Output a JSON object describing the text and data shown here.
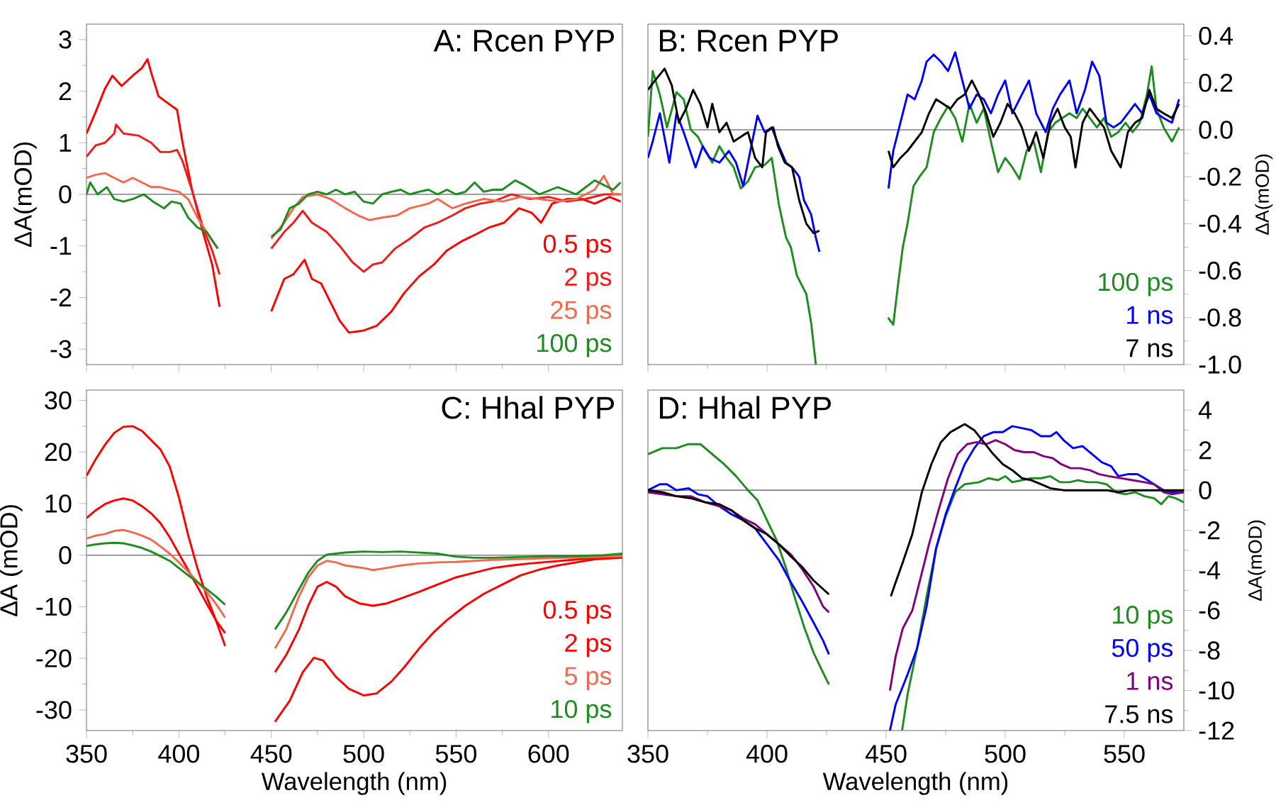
{
  "chart_data": [
    {
      "type": "line",
      "title": "A: Rcen PYP",
      "ylabel": "ΔA(mOD)",
      "xlim": [
        350,
        640
      ],
      "xticks": [
        350,
        400,
        450,
        500,
        550,
        600
      ],
      "ylim": [
        -3.3,
        3.3
      ],
      "yticks": [
        -3,
        -2,
        -1,
        0,
        1,
        2,
        3
      ],
      "tick_labels": "y",
      "legend": "bottom right",
      "ref_lines": [
        {
          "axis": "y",
          "value": 0,
          "color": "#808080"
        }
      ],
      "series": [
        {
          "name": "0.5 ps",
          "color": "#ff0000",
          "x": [
            350,
            355,
            360,
            364,
            369,
            375,
            380,
            383,
            385,
            389,
            392,
            399,
            402,
            407,
            413,
            418,
            422,
            437,
            450,
            457,
            462,
            468,
            472,
            477,
            482,
            487,
            492,
            500,
            507,
            515,
            522,
            530,
            538,
            545,
            553,
            561,
            568,
            576,
            584,
            591,
            596,
            602,
            610,
            618,
            625,
            633,
            639
          ],
          "values": [
            1.18,
            1.6,
            2.05,
            2.3,
            2.1,
            2.3,
            2.45,
            2.62,
            2.36,
            1.9,
            1.82,
            1.64,
            1.0,
            0.1,
            -0.73,
            -1.36,
            -2.18,
            null,
            -2.27,
            -1.64,
            -1.55,
            -1.27,
            -1.64,
            -1.73,
            -2.09,
            -2.45,
            -2.68,
            -2.64,
            -2.55,
            -2.27,
            -1.91,
            -1.59,
            -1.36,
            -1.09,
            -0.91,
            -0.77,
            -0.64,
            -0.55,
            -0.27,
            -0.36,
            -0.55,
            -0.18,
            -0.09,
            -0.09,
            -0.18,
            -0.05,
            -0.14
          ]
        },
        {
          "name": "2 ps",
          "color": "#f21a1a",
          "x": [
            350,
            355,
            360,
            365,
            366,
            370,
            378,
            385,
            390,
            395,
            399,
            402,
            407,
            413,
            418,
            422,
            437,
            450,
            457,
            462,
            467,
            472,
            480,
            487,
            494,
            500,
            505,
            510,
            517,
            525,
            533,
            540,
            548,
            555,
            563,
            570,
            580,
            590,
            600,
            610,
            620,
            630,
            639
          ],
          "values": [
            0.73,
            0.95,
            1.0,
            1.18,
            1.35,
            1.18,
            1.14,
            1.0,
            0.82,
            0.82,
            0.86,
            0.64,
            0.09,
            -0.64,
            -1.09,
            -1.55,
            null,
            -1.05,
            -0.73,
            -0.55,
            -0.32,
            -0.55,
            -0.73,
            -1.0,
            -1.32,
            -1.5,
            -1.36,
            -1.32,
            -1.05,
            -0.86,
            -0.64,
            -0.55,
            -0.41,
            -0.27,
            -0.18,
            -0.14,
            0,
            -0.09,
            -0.05,
            -0.14,
            -0.09,
            0,
            0
          ]
        },
        {
          "name": "25 ps",
          "color": "#f06a50",
          "x": [
            350,
            355,
            360,
            365,
            370,
            375,
            380,
            385,
            390,
            395,
            400,
            405,
            410,
            415,
            421,
            437,
            450,
            457,
            462,
            467,
            475,
            482,
            490,
            497,
            503,
            510,
            518,
            525,
            535,
            540,
            548,
            555,
            565,
            575,
            585,
            595,
            605,
            615,
            625,
            630,
            635,
            639
          ],
          "values": [
            0.32,
            0.38,
            0.41,
            0.32,
            0.23,
            0.32,
            0.23,
            0.14,
            0.14,
            0.09,
            0.05,
            -0.09,
            -0.45,
            -0.73,
            -1.05,
            null,
            -0.86,
            -0.55,
            -0.27,
            -0.05,
            0,
            -0.09,
            -0.27,
            -0.41,
            -0.5,
            -0.45,
            -0.41,
            -0.27,
            -0.18,
            -0.09,
            -0.27,
            -0.18,
            -0.09,
            -0.14,
            -0.05,
            -0.09,
            -0.14,
            -0.09,
            0.09,
            0.36,
            0,
            0
          ]
        },
        {
          "name": "100 ps",
          "color": "#1e8c1e",
          "x": [
            350,
            352,
            356,
            361,
            365,
            370,
            375,
            381,
            386,
            392,
            396,
            401,
            405,
            410,
            415,
            421,
            437,
            450,
            455,
            460,
            465,
            470,
            475,
            480,
            485,
            490,
            495,
            500,
            505,
            510,
            515,
            520,
            525,
            530,
            535,
            540,
            545,
            550,
            555,
            560,
            565,
            570,
            575,
            582,
            587,
            595,
            605,
            615,
            625,
            630,
            635,
            639
          ],
          "values": [
            0,
            0.23,
            0,
            0.14,
            -0.09,
            -0.14,
            -0.09,
            0,
            -0.14,
            -0.27,
            -0.14,
            -0.18,
            -0.45,
            -0.64,
            -0.73,
            -1.05,
            null,
            -0.82,
            -0.68,
            -0.27,
            -0.18,
            0,
            0.05,
            0,
            0.09,
            0,
            0.05,
            -0.14,
            -0.18,
            0,
            0.05,
            0.09,
            0,
            0.05,
            0.09,
            0,
            0.09,
            0,
            0.05,
            0.23,
            0.05,
            0.09,
            0.09,
            0.27,
            0.18,
            0,
            0.14,
            0,
            0.27,
            0.18,
            0.09,
            0.23
          ]
        }
      ]
    },
    {
      "type": "line",
      "title": "B: Rcen PYP",
      "y2label": "ΔA(mOD)",
      "xlim": [
        350,
        575
      ],
      "xticks": [
        350,
        400,
        450,
        500,
        550
      ],
      "y2lim": [
        -1.0,
        0.45
      ],
      "y2ticks": [
        {
          "value": -1,
          "label": "-1.0"
        },
        -0.8,
        -0.6,
        -0.4,
        -0.2,
        {
          "value": 0,
          "label": "0.0"
        },
        0.2,
        0.4
      ],
      "tick_labels": "y",
      "legend": "bottom right",
      "ref_lines": [
        {
          "axis": "y2",
          "value": 0,
          "color": "#808080"
        }
      ],
      "series": [
        {
          "name": "100 ps",
          "color": "#1e8c1e",
          "axis": "y2",
          "x": [
            350,
            352,
            355,
            358,
            362,
            365,
            368,
            371,
            374,
            377,
            380,
            383,
            386,
            389,
            392,
            395,
            399,
            402,
            405,
            408,
            410,
            412.5,
            416.5,
            418.5,
            420.5,
            437,
            450.8,
            453,
            455,
            457,
            459,
            461.5,
            464,
            467,
            470,
            473,
            476,
            479,
            482,
            485,
            488,
            491,
            494,
            497,
            500,
            503,
            506,
            509,
            512,
            515,
            518,
            521,
            524,
            527,
            530,
            532.5,
            535.5,
            538.5,
            541.5,
            544.5,
            547.5,
            550.5,
            553.5,
            556.5,
            559.5,
            561.5,
            563.5,
            566.5,
            570,
            573
          ],
          "values": [
            -0.03,
            0.25,
            0.15,
            0.01,
            0.16,
            0.13,
            0,
            -0.03,
            -0.09,
            -0.14,
            -0.07,
            -0.12,
            -0.16,
            -0.25,
            -0.22,
            -0.16,
            -0.15,
            -0.12,
            -0.32,
            -0.46,
            -0.5,
            -0.62,
            -0.7,
            -0.82,
            -1.0,
            null,
            -0.8,
            -0.83,
            -0.66,
            -0.5,
            -0.4,
            -0.24,
            -0.2,
            -0.16,
            -0.01,
            0.05,
            0.1,
            0.05,
            -0.05,
            0.11,
            0.03,
            0.09,
            -0.05,
            -0.18,
            -0.12,
            -0.16,
            -0.21,
            -0.09,
            -0.05,
            -0.18,
            -0.01,
            0.03,
            0.05,
            0.07,
            0.05,
            0.09,
            0.05,
            0.01,
            0.05,
            -0.03,
            -0.01,
            0.03,
            -0.01,
            0.03,
            0.15,
            0.27,
            0.09,
            0.01,
            -0.05,
            0.01
          ]
        },
        {
          "name": "1 ns",
          "color": "#0000ff",
          "axis": "y2",
          "x": [
            350,
            352,
            355,
            359,
            362,
            365,
            370,
            373,
            376,
            380,
            384,
            387,
            390,
            393,
            396,
            399,
            402,
            405,
            408,
            410.5,
            413.5,
            415.5,
            418.5,
            420.5,
            422,
            437,
            451,
            453,
            456,
            459,
            462,
            465,
            467,
            470,
            473,
            476,
            479,
            482,
            485,
            488,
            491,
            494,
            497,
            500,
            503,
            506,
            510,
            513,
            517,
            520,
            523,
            527,
            530,
            533.5,
            536.5,
            539.5,
            542.5,
            545.5,
            548.5,
            551.5,
            554.5,
            557.5,
            560.5,
            563.5,
            566.5,
            570,
            573
          ],
          "values": [
            -0.12,
            -0.05,
            0.07,
            -0.14,
            0.07,
            -0.01,
            -0.16,
            -0.07,
            -0.12,
            -0.14,
            -0.09,
            -0.14,
            -0.24,
            -0.09,
            0.06,
            -0.01,
            0.01,
            -0.07,
            -0.14,
            -0.16,
            -0.2,
            -0.3,
            -0.36,
            -0.46,
            -0.52,
            null,
            -0.25,
            -0.09,
            0.03,
            0.15,
            0.13,
            0.21,
            0.29,
            0.32,
            0.29,
            0.25,
            0.33,
            0.21,
            0.09,
            0.15,
            0.13,
            0.07,
            0.15,
            0.21,
            0.07,
            0.13,
            0.21,
            0.07,
            -0.01,
            0.09,
            0.15,
            0.21,
            0.07,
            0.17,
            0.29,
            0.23,
            0.03,
            0.01,
            0.03,
            0.07,
            0.11,
            0.07,
            0.15,
            0.07,
            0.05,
            0.03,
            0.13
          ]
        },
        {
          "name": "7 ns",
          "color": "#000000",
          "axis": "y2",
          "x": [
            350,
            353,
            357,
            360,
            363,
            366,
            369,
            372,
            375,
            377,
            380,
            383,
            386,
            389,
            392,
            395,
            398,
            399.6,
            402.6,
            404.6,
            407.5,
            410.5,
            413.5,
            416.5,
            419.5,
            422,
            437,
            451,
            453,
            456,
            459,
            462,
            465,
            468,
            471,
            474,
            477,
            480,
            483,
            486,
            489,
            492,
            495,
            498,
            501,
            504,
            507,
            510,
            513,
            516,
            519,
            522,
            525,
            527.5,
            529.5,
            532.5,
            535.5,
            538.5,
            541.5,
            544.5,
            548.5,
            551.5,
            554.5,
            557.5,
            560.5,
            563.5,
            566.5,
            570,
            573
          ],
          "values": [
            0.17,
            0.21,
            0.26,
            0.19,
            0.03,
            0.09,
            0.17,
            0.11,
            0.01,
            0.11,
            -0.01,
            0.03,
            -0.05,
            -0.03,
            -0.01,
            -0.12,
            -0.16,
            -0.01,
            0.01,
            -0.07,
            -0.14,
            -0.16,
            -0.3,
            -0.4,
            -0.44,
            -0.43,
            null,
            -0.09,
            -0.16,
            -0.12,
            -0.09,
            -0.05,
            -0.01,
            0.07,
            0.13,
            0.11,
            0.09,
            0.13,
            0.15,
            0.21,
            0.15,
            0.07,
            -0.03,
            0.03,
            0.11,
            0.07,
            0.01,
            -0.09,
            -0.01,
            -0.12,
            0.03,
            0.09,
            0.01,
            -0.03,
            -0.16,
            0.03,
            0.09,
            0.05,
            0.01,
            -0.09,
            -0.16,
            -0.01,
            0.03,
            0.05,
            0.17,
            0.09,
            0.07,
            0.05,
            0.11
          ]
        }
      ]
    },
    {
      "type": "line",
      "title": "C: Hhal PYP",
      "xlabel": "Wavelength (nm)",
      "ylabel": "ΔA (mOD)",
      "xlim": [
        350,
        640
      ],
      "xticks": [
        350,
        400,
        450,
        500,
        550,
        600
      ],
      "ylim": [
        -34,
        32
      ],
      "yticks": [
        -30,
        -20,
        -10,
        0,
        10,
        20,
        30
      ],
      "legend": "bottom right",
      "ref_lines": [
        {
          "axis": "y",
          "value": 0,
          "color": "#808080"
        }
      ],
      "series": [
        {
          "name": "0.5 ps",
          "color": "#ff0000",
          "x": [
            350,
            355,
            360,
            365,
            370,
            375,
            380,
            385,
            390,
            395,
            400,
            405,
            410,
            415,
            420,
            425,
            437,
            452,
            460,
            467,
            473,
            478,
            485,
            492,
            500,
            507,
            515,
            522,
            530,
            538,
            545,
            555,
            565,
            575,
            585,
            595,
            605,
            615,
            625,
            640
          ],
          "values": [
            15.4,
            18.6,
            21.4,
            23.7,
            24.9,
            25,
            24.1,
            22.3,
            20.5,
            17.2,
            11.2,
            3.9,
            -2.5,
            -8,
            -12.6,
            -17.6,
            null,
            -32.3,
            -28.2,
            -22.7,
            -19.9,
            -20.4,
            -23.6,
            -25.9,
            -27.2,
            -26.8,
            -24.5,
            -21.7,
            -18.1,
            -14.9,
            -12.6,
            -9.8,
            -7.5,
            -5.7,
            -3.9,
            -2.8,
            -2.0,
            -1.4,
            -0.8,
            -0.5
          ]
        },
        {
          "name": "2 ps",
          "color": "#ff0000",
          "x": [
            350,
            355,
            360,
            365,
            370,
            375,
            380,
            385,
            390,
            395,
            400,
            405,
            410,
            415,
            420,
            425,
            437,
            452,
            458,
            465,
            470,
            475,
            480,
            485,
            490,
            498,
            505,
            512,
            520,
            530,
            540,
            550,
            560,
            570,
            580,
            590,
            600,
            610,
            620,
            630,
            640
          ],
          "values": [
            7.2,
            8.7,
            9.9,
            10.6,
            11,
            10.6,
            9.5,
            8.1,
            6.2,
            3.5,
            0.3,
            -2.9,
            -6.1,
            -9.4,
            -12.6,
            -15.1,
            null,
            -22.7,
            -19.4,
            -14.4,
            -9.8,
            -6.1,
            -5.2,
            -6.1,
            -8,
            -9.4,
            -9.8,
            -9.4,
            -8.4,
            -7.1,
            -5.7,
            -4.3,
            -3.4,
            -2.5,
            -2.0,
            -1.6,
            -1.3,
            -1.0,
            -0.7,
            -0.6,
            -0.4
          ]
        },
        {
          "name": "5 ps",
          "color": "#f06a50",
          "x": [
            350,
            355,
            360,
            365,
            370,
            375,
            380,
            385,
            390,
            395,
            400,
            405,
            410,
            415,
            420,
            425,
            437,
            452,
            458,
            465,
            470,
            475,
            480,
            485,
            490,
            500,
            505,
            512,
            520,
            530,
            540,
            550,
            560,
            570,
            580,
            590,
            600,
            610,
            620,
            630,
            640
          ],
          "values": [
            3.2,
            3.8,
            4.1,
            4.7,
            4.9,
            4.4,
            3.8,
            3,
            1.7,
            0.3,
            -1.4,
            -3.2,
            -5.2,
            -7.1,
            -9.4,
            -12.1,
            null,
            -18.1,
            -14.4,
            -8,
            -4.3,
            -2,
            -1.1,
            -1.4,
            -2,
            -2.5,
            -2.9,
            -2.5,
            -2,
            -1.6,
            -1.4,
            -1.3,
            -1.1,
            -0.9,
            -0.8,
            -0.7,
            -0.6,
            -0.5,
            -0.4,
            -0.3,
            -0.2
          ]
        },
        {
          "name": "10 ps",
          "color": "#1e8c1e",
          "x": [
            350,
            355,
            360,
            365,
            370,
            375,
            380,
            385,
            390,
            395,
            400,
            405,
            410,
            415,
            420,
            425,
            437,
            452,
            458,
            465,
            470,
            475,
            480,
            490,
            500,
            510,
            520,
            530,
            540,
            550,
            560,
            570,
            580,
            590,
            600,
            610,
            620,
            630,
            640
          ],
          "values": [
            1.8,
            2.1,
            2.3,
            2.4,
            2.3,
            1.9,
            1.4,
            0.7,
            -0.2,
            -1.1,
            -2.5,
            -3.9,
            -5.2,
            -6.6,
            -8,
            -9.6,
            null,
            -14.4,
            -11.2,
            -6.6,
            -3.4,
            -1.1,
            0.1,
            0.5,
            0.7,
            0.6,
            0.7,
            0.5,
            0.3,
            -0.3,
            -0.5,
            -0.5,
            -0.4,
            -0.3,
            -0.2,
            -0.2,
            -0.1,
            0,
            0.3
          ]
        }
      ]
    },
    {
      "type": "line",
      "title": "D: Hhal PYP",
      "xlabel": "Wavelength (nm)",
      "y2label": "ΔA(mOD)",
      "xlim": [
        350,
        575
      ],
      "xticks": [
        350,
        400,
        450,
        500,
        550
      ],
      "y2lim": [
        -12,
        5
      ],
      "y2ticks": [
        -12,
        -10,
        -8,
        -6,
        -4,
        -2,
        0,
        2,
        4
      ],
      "legend": "bottom right",
      "ref_lines": [
        {
          "axis": "y2",
          "value": 0,
          "color": "#808080"
        }
      ],
      "series": [
        {
          "name": "10 ps",
          "color": "#1e8c1e",
          "axis": "y2",
          "x": [
            350,
            356,
            362,
            367,
            372,
            377,
            382,
            387,
            392,
            396,
            400,
            404,
            408,
            411.5,
            415.5,
            419.5,
            423.5,
            426,
            437,
            456.7,
            459,
            463,
            467,
            471,
            475,
            479,
            483,
            489,
            493,
            497,
            500,
            503,
            507,
            511,
            515,
            519,
            523,
            527,
            530.5,
            534.5,
            538.5,
            542.5,
            546.5,
            550.5,
            554.5,
            558.5,
            562.5,
            565.5,
            568.5,
            571.5,
            575
          ],
          "values": [
            1.8,
            2.1,
            2.1,
            2.3,
            2.3,
            1.8,
            1.3,
            0.7,
            0,
            -0.5,
            -1.5,
            -2.5,
            -3.9,
            -5.3,
            -6.8,
            -8.1,
            -9.1,
            -9.7,
            null,
            -12,
            -10.2,
            -7.9,
            -5.3,
            -2.9,
            -1.3,
            -0.1,
            0.3,
            0.4,
            0.6,
            0.5,
            0.7,
            0.4,
            0.5,
            0.6,
            0.6,
            0.7,
            0.4,
            0.4,
            0.5,
            0.4,
            0.4,
            0.3,
            -0.1,
            -0.2,
            -0.1,
            -0.3,
            -0.4,
            -0.7,
            -0.3,
            -0.4,
            -0.6
          ]
        },
        {
          "name": "50 ps",
          "color": "#0000ff",
          "axis": "y2",
          "x": [
            350,
            355,
            358,
            362,
            367,
            371,
            375,
            380,
            385,
            390,
            395,
            400,
            405,
            410,
            414.5,
            419.5,
            423.5,
            426,
            437,
            451.6,
            454,
            459,
            463,
            467,
            471,
            475,
            479,
            483,
            487,
            491,
            495,
            499,
            503,
            507,
            511,
            515,
            519,
            521.5,
            524.5,
            528.5,
            532.5,
            536.5,
            540.5,
            544.5,
            547.5,
            551.5,
            555.5,
            558.5,
            562.5,
            566.5,
            570,
            575
          ],
          "values": [
            0,
            0.3,
            0.3,
            0,
            0.1,
            -0.2,
            -0.3,
            -0.8,
            -1.2,
            -1.5,
            -1.9,
            -2.7,
            -3.5,
            -4.6,
            -5.5,
            -6.6,
            -7.5,
            -8.2,
            null,
            -12,
            -10.7,
            -9.2,
            -7.9,
            -5.8,
            -2.9,
            -1.2,
            0.1,
            1.3,
            2.1,
            2.7,
            2.9,
            2.9,
            3.2,
            3.1,
            3.0,
            2.7,
            2.7,
            2.9,
            2.5,
            2.1,
            2.2,
            1.8,
            1.4,
            1.2,
            0.7,
            0.8,
            0.8,
            0.6,
            0.3,
            0,
            -0.1,
            -0.1
          ]
        },
        {
          "name": "1 ns",
          "color": "#800080",
          "axis": "y2",
          "x": [
            350,
            356,
            362,
            368,
            374,
            380,
            385,
            390,
            395,
            400,
            405,
            410,
            414.5,
            419.5,
            423.5,
            426,
            437,
            451.6,
            454,
            457,
            461,
            464,
            468,
            472,
            476,
            480,
            484,
            488,
            492,
            496,
            500,
            504,
            508,
            512,
            516,
            520,
            523.5,
            527.5,
            531.5,
            535.5,
            539.5,
            543.5,
            548.5,
            553.5,
            558.5,
            562.5,
            566.5,
            570,
            575
          ],
          "values": [
            -0.1,
            -0.2,
            -0.3,
            -0.3,
            -0.6,
            -0.8,
            -1.0,
            -1.4,
            -1.7,
            -2.2,
            -2.7,
            -3.2,
            -3.9,
            -4.8,
            -5.8,
            -6.1,
            null,
            -10,
            -8.3,
            -6.9,
            -6.0,
            -4.6,
            -2.7,
            -1.0,
            0.6,
            1.8,
            2.3,
            2.4,
            2.3,
            2.5,
            2.3,
            2.0,
            1.9,
            1.9,
            1.7,
            1.6,
            1.3,
            1.1,
            1.1,
            1.0,
            0.8,
            0.7,
            0.6,
            0.5,
            0.4,
            0.3,
            -0.1,
            -0.2,
            -0.1
          ]
        },
        {
          "name": "7.5 ns",
          "color": "#000000",
          "axis": "y2",
          "x": [
            350,
            356,
            362,
            368,
            374,
            380,
            385,
            390,
            395,
            400,
            405,
            410,
            414.5,
            419.5,
            426,
            437,
            452,
            454,
            457,
            461,
            465,
            469,
            473,
            477,
            480,
            483,
            487,
            491,
            495,
            499,
            503,
            507,
            511,
            515,
            519,
            524.5,
            530.5,
            536.5,
            542.5,
            547.5,
            552.5,
            558.5,
            564.5,
            570,
            575
          ],
          "values": [
            0,
            -0.1,
            -0.3,
            -0.4,
            -0.6,
            -0.7,
            -1.0,
            -1.5,
            -1.9,
            -2.2,
            -2.7,
            -3.3,
            -3.8,
            -4.5,
            -5.2,
            null,
            -5.3,
            -4.6,
            -3.6,
            -2.2,
            -0.1,
            1.3,
            2.4,
            2.9,
            3.1,
            3.3,
            3.0,
            2.4,
            1.8,
            1.3,
            1.0,
            0.6,
            0.5,
            0.3,
            0.1,
            0,
            0,
            0,
            0,
            -0.1,
            0,
            0,
            0,
            0,
            0
          ]
        }
      ]
    }
  ]
}
